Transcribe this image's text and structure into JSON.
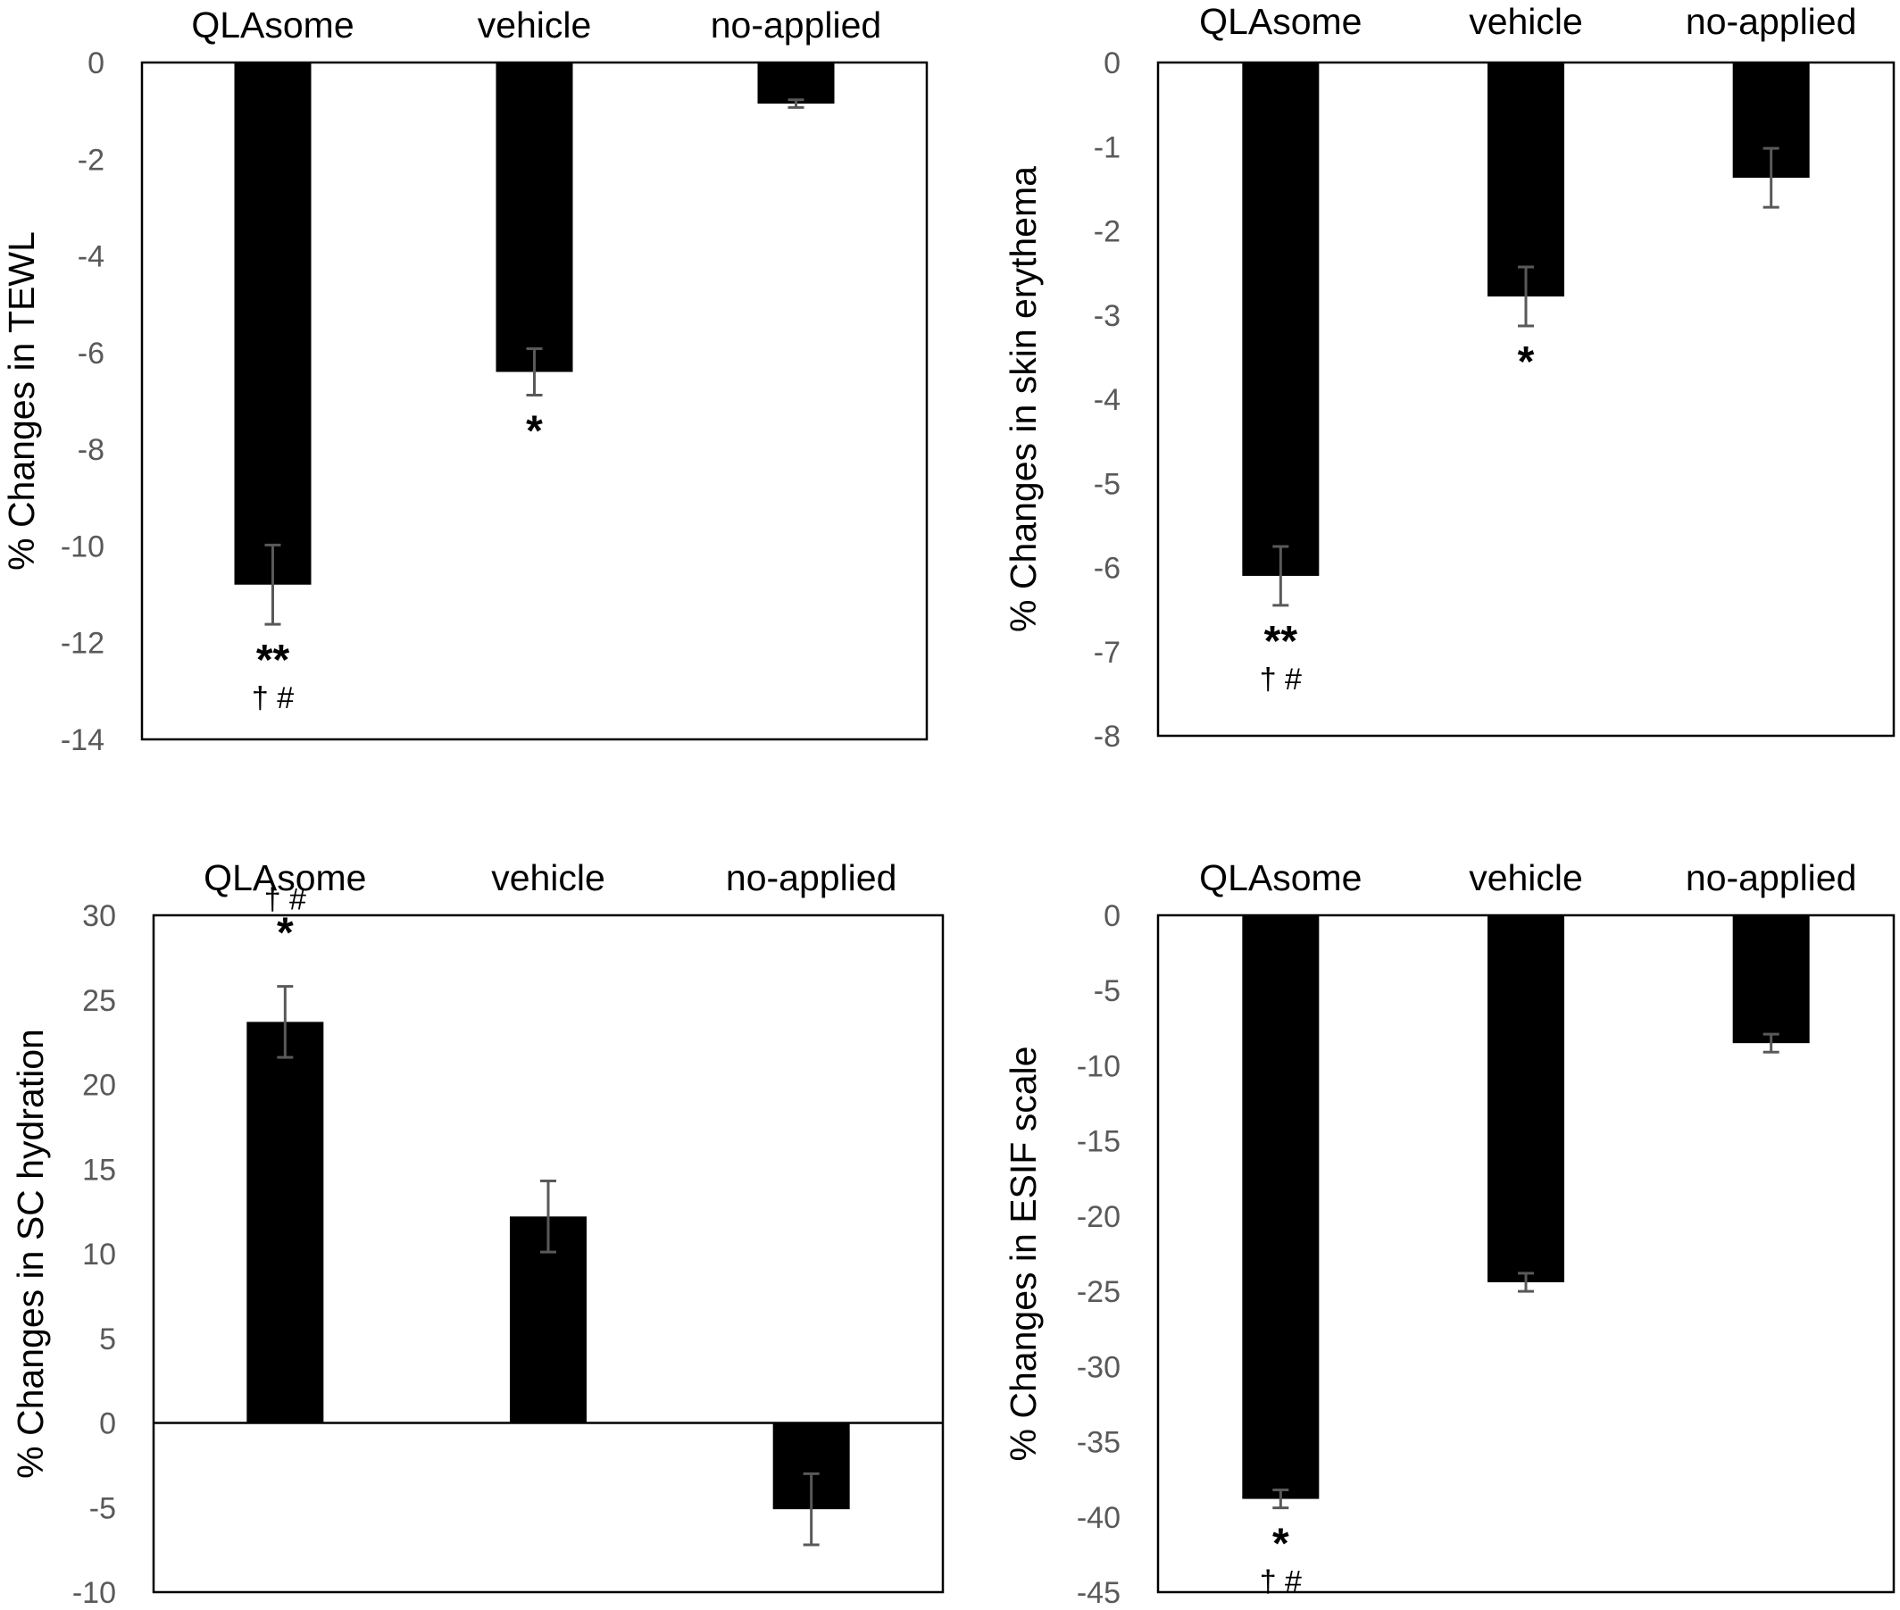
{
  "chart_data": [
    {
      "type": "bar",
      "categories": [
        "QLAsome",
        "vehicle",
        "no-applied"
      ],
      "values": [
        -10.8,
        -6.4,
        -0.85
      ],
      "errors": [
        0.82,
        0.48,
        0.08
      ],
      "ylabel": "% Changes in TEWL",
      "ylim": [
        -14,
        0
      ],
      "yticks": [
        0,
        -2,
        -4,
        -6,
        -8,
        -10,
        -12,
        -14
      ],
      "annotations": [
        {
          "category": "QLAsome",
          "lines": [
            "**",
            "† #"
          ]
        },
        {
          "category": "vehicle",
          "lines": [
            "*"
          ]
        }
      ],
      "grid": false,
      "category_labels_position": "top"
    },
    {
      "type": "bar",
      "categories": [
        "QLAsome",
        "vehicle",
        "no-applied"
      ],
      "values": [
        -6.1,
        -2.78,
        -1.37
      ],
      "errors": [
        0.35,
        0.35,
        0.35
      ],
      "ylabel": "% Changes in skin erythema",
      "ylim": [
        -8,
        0
      ],
      "yticks": [
        0,
        -1,
        -2,
        -3,
        -4,
        -5,
        -6,
        -7,
        -8
      ],
      "annotations": [
        {
          "category": "QLAsome",
          "lines": [
            "**",
            "† #"
          ]
        },
        {
          "category": "vehicle",
          "lines": [
            "*"
          ]
        }
      ],
      "grid": false,
      "category_labels_position": "top"
    },
    {
      "type": "bar",
      "categories": [
        "QLAsome",
        "vehicle",
        "no-applied"
      ],
      "values": [
        23.7,
        12.2,
        -5.1
      ],
      "errors": [
        2.1,
        2.1,
        2.1
      ],
      "ylabel": "% Changes in SC hydration",
      "ylim": [
        -10,
        30
      ],
      "yticks": [
        30,
        25,
        20,
        15,
        10,
        5,
        0,
        -5,
        -10
      ],
      "annotations": [
        {
          "category": "QLAsome",
          "lines": [
            "† #",
            "*"
          ]
        }
      ],
      "grid": false,
      "category_labels_position": "top"
    },
    {
      "type": "bar",
      "categories": [
        "QLAsome",
        "vehicle",
        "no-applied"
      ],
      "values": [
        -38.8,
        -24.4,
        -8.5
      ],
      "errors": [
        0.6,
        0.6,
        0.6
      ],
      "ylabel": "% Changes in ESIF scale",
      "ylim": [
        -45,
        0
      ],
      "yticks": [
        0,
        -5,
        -10,
        -15,
        -20,
        -25,
        -30,
        -35,
        -40,
        -45
      ],
      "annotations": [
        {
          "category": "QLAsome",
          "lines": [
            "*",
            "† #"
          ]
        }
      ],
      "grid": false,
      "category_labels_position": "top"
    }
  ],
  "colors": {
    "bar": "#000000",
    "error_bar": "#595959",
    "tick_text": "#595959",
    "frame": "#000000",
    "zero_line": "#000000"
  }
}
